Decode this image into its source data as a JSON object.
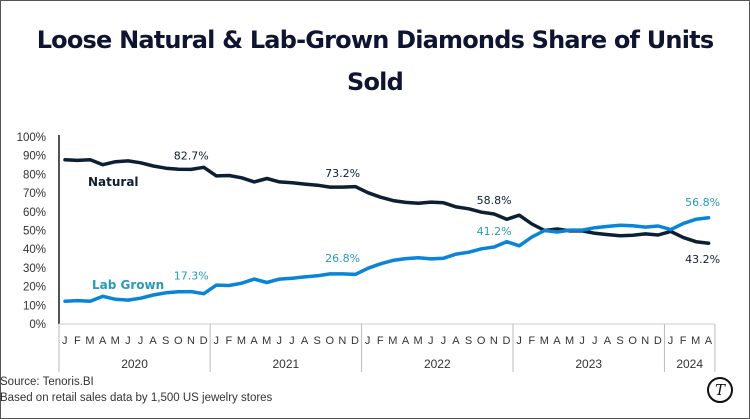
{
  "title_line1": "Loose Natural & Lab-Grown Diamonds Share of Units",
  "title_line2": "Sold",
  "footer": {
    "source": "Source: Tenoris.BI",
    "note": "Based on retail sales data by 1,500 US jewelry stores"
  },
  "logo_letter": "T",
  "colors": {
    "natural": "#0d1f33",
    "lab_grown": "#0a84d6",
    "lab_grown_label": "#2a9ab8",
    "axis": "#bbbbbb"
  },
  "chart_data": {
    "type": "line",
    "title": "Loose Natural & Lab-Grown Diamonds Share of Units Sold",
    "xlabel": "",
    "ylabel": "",
    "ylim": [
      0,
      100
    ],
    "yticks": [
      "0%",
      "10%",
      "20%",
      "30%",
      "40%",
      "50%",
      "60%",
      "70%",
      "80%",
      "90%",
      "100%"
    ],
    "grid": false,
    "month_labels": [
      "J",
      "F",
      "M",
      "A",
      "M",
      "J",
      "J",
      "A",
      "S",
      "O",
      "N",
      "D",
      "J",
      "F",
      "M",
      "A",
      "M",
      "J",
      "J",
      "A",
      "S",
      "O",
      "N",
      "D",
      "J",
      "F",
      "M",
      "A",
      "M",
      "J",
      "J",
      "A",
      "S",
      "O",
      "N",
      "D",
      "J",
      "F",
      "M",
      "A",
      "M",
      "J",
      "J",
      "A",
      "S",
      "O",
      "N",
      "D",
      "J",
      "F",
      "M",
      "A"
    ],
    "year_groups": [
      {
        "label": "2020",
        "months": 12
      },
      {
        "label": "2021",
        "months": 12
      },
      {
        "label": "2022",
        "months": 12
      },
      {
        "label": "2023",
        "months": 12
      },
      {
        "label": "2024",
        "months": 4
      }
    ],
    "series": [
      {
        "name": "Natural",
        "values": [
          87.8,
          87.5,
          87.8,
          85.2,
          86.8,
          87.2,
          86.2,
          84.5,
          83.3,
          82.8,
          82.7,
          83.8,
          79.2,
          79.4,
          78.2,
          76.0,
          77.8,
          76.0,
          75.5,
          74.8,
          74.2,
          73.2,
          73.2,
          73.5,
          70.2,
          67.8,
          66.0,
          65.0,
          64.6,
          65.2,
          64.8,
          62.6,
          61.6,
          59.8,
          58.8,
          56.0,
          58.2,
          53.5,
          50.0,
          50.8,
          49.8,
          49.8,
          48.5,
          47.8,
          47.2,
          47.5,
          48.2,
          47.6,
          49.5,
          46.2,
          44.0,
          43.2
        ],
        "annotations": [
          {
            "index": 10,
            "label": "82.7%"
          },
          {
            "index": 22,
            "label": "73.2%"
          },
          {
            "index": 34,
            "label": "58.8%"
          },
          {
            "index": 51,
            "label": "43.2%"
          }
        ]
      },
      {
        "name": "Lab Grown",
        "values": [
          12.2,
          12.5,
          12.2,
          14.8,
          13.2,
          12.8,
          13.8,
          15.5,
          16.7,
          17.2,
          17.3,
          16.2,
          20.8,
          20.6,
          21.8,
          24.0,
          22.2,
          24.0,
          24.5,
          25.2,
          25.8,
          26.8,
          26.8,
          26.5,
          29.8,
          32.2,
          34.0,
          35.0,
          35.4,
          34.8,
          35.2,
          37.4,
          38.4,
          40.2,
          41.2,
          44.0,
          41.8,
          46.5,
          50.0,
          49.2,
          50.2,
          50.2,
          51.5,
          52.2,
          52.8,
          52.5,
          51.8,
          52.4,
          50.5,
          53.8,
          56.0,
          56.8
        ],
        "annotations": [
          {
            "index": 10,
            "label": "17.3%"
          },
          {
            "index": 22,
            "label": "26.8%"
          },
          {
            "index": 34,
            "label": "41.2%"
          },
          {
            "index": 51,
            "label": "56.8%"
          }
        ]
      }
    ],
    "legend": "inline labels near lines (Natural top-left, Lab Grown lower-left)"
  }
}
